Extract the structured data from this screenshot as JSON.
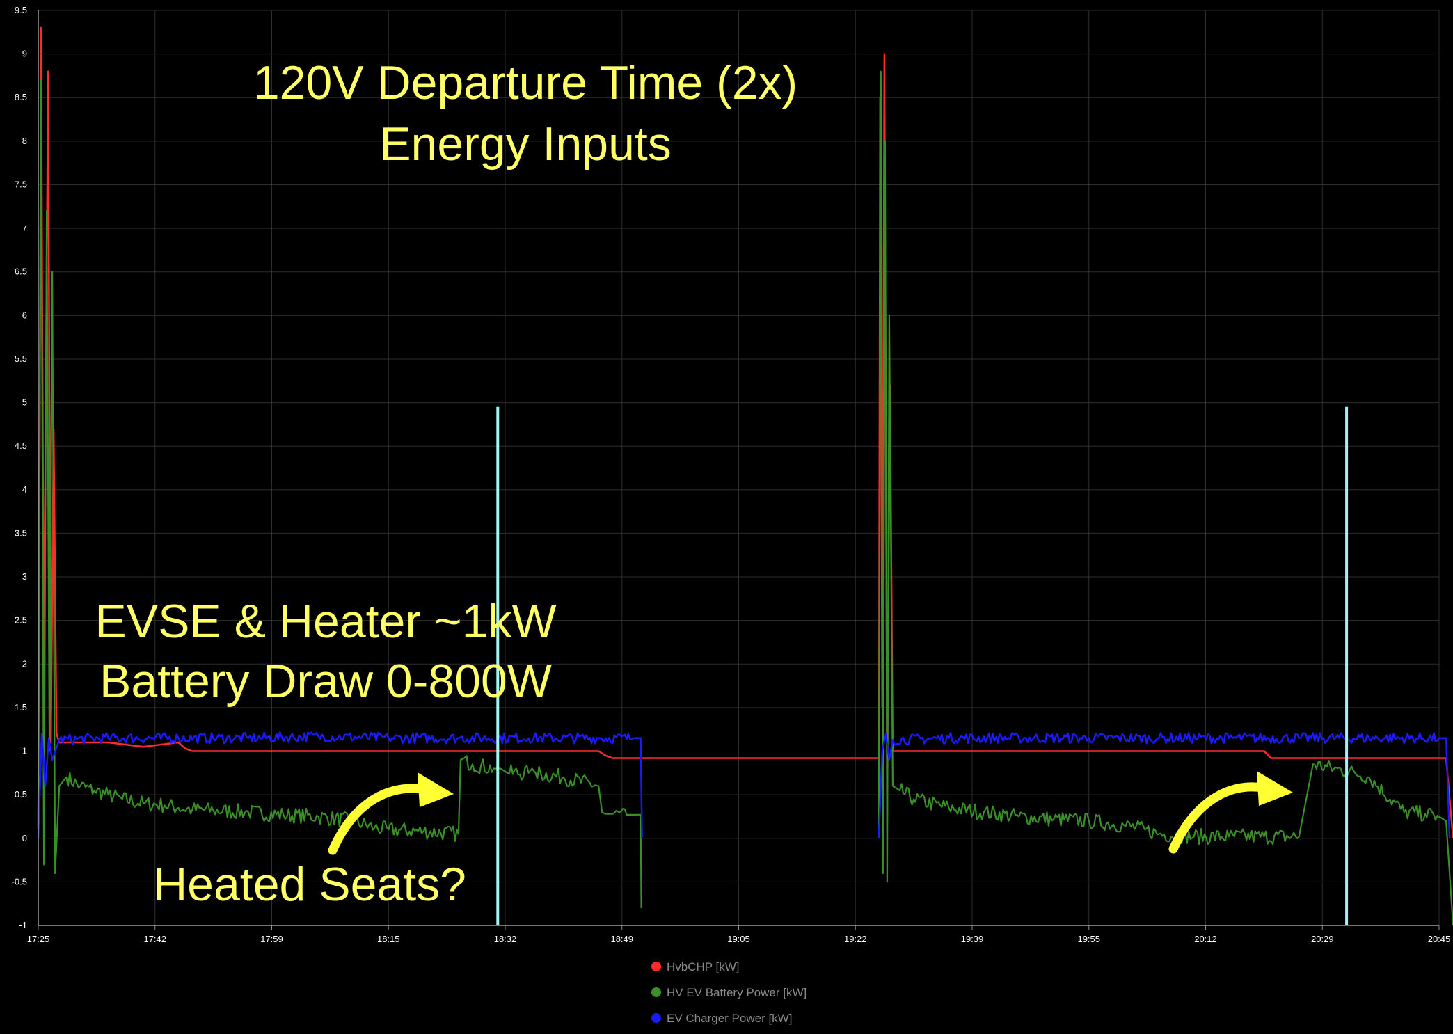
{
  "chart_data": {
    "type": "line",
    "title": "",
    "xlabel": "",
    "ylabel": "",
    "ylim": [
      -1,
      9.5
    ],
    "yticks": [
      "-1",
      "-0.5",
      "0",
      "0.5",
      "1",
      "1.5",
      "2",
      "2.5",
      "3",
      "3.5",
      "4",
      "4.5",
      "5",
      "5.5",
      "6",
      "6.5",
      "7",
      "7.5",
      "8",
      "8.5",
      "9",
      "9.5"
    ],
    "xticks": [
      "17:25",
      "17:42",
      "17:59",
      "18:15",
      "18:32",
      "18:49",
      "19:05",
      "19:22",
      "19:39",
      "19:55",
      "20:12",
      "20:29",
      "20:45"
    ],
    "x_range_minutes": [
      0,
      200
    ],
    "grid": true,
    "legend_position": "bottom-center",
    "series": [
      {
        "name": "HvbCHP [kW]",
        "color": "#ff2a2a",
        "segments": [
          {
            "x": [
              0,
              0.4,
              0.8,
              1,
              1.4,
              1.8,
              2.2,
              2.6,
              3,
              3.5,
              4,
              10,
              15,
              20,
              21,
              22,
              25,
              30,
              40,
              50,
              60,
              70,
              80,
              81,
              82,
              90,
              100,
              120
            ],
            "y": [
              0.1,
              9.3,
              1.5,
              4.2,
              8.8,
              1.1,
              4.7,
              1.2,
              1.1,
              1.1,
              1.1,
              1.1,
              1.05,
              1.1,
              1.03,
              1.0,
              1.0,
              1.0,
              1.0,
              1.0,
              1.0,
              1.0,
              1.0,
              0.95,
              0.92,
              0.92,
              0.92,
              0.92
            ]
          },
          {
            "x": [
              120,
              120.2,
              120.5,
              120.8,
              121.2,
              121.6,
              122,
              123,
              125,
              130,
              140,
              150,
              160,
              170,
              175,
              176,
              180,
              190,
              200,
              201,
              202
            ],
            "y": [
              0.05,
              8.5,
              1.5,
              9.0,
              0.7,
              5.2,
              1.0,
              1.0,
              1.0,
              1.0,
              1.0,
              1.0,
              1.0,
              1.0,
              1.0,
              0.92,
              0.92,
              0.92,
              0.92,
              0.92,
              0.0
            ]
          }
        ]
      },
      {
        "name": "HV EV Battery Power [kW]",
        "color": "#3a8f28",
        "segments": [
          {
            "x": [
              0,
              0.4,
              0.8,
              1.2,
              1.6,
              2,
              2.4,
              3,
              4,
              6,
              8,
              10,
              12,
              15,
              18,
              20,
              22,
              25,
              30,
              35,
              40,
              45,
              48,
              50,
              55,
              60,
              60.3,
              62,
              65,
              66,
              67,
              70,
              70.5,
              71,
              75,
              80,
              80.5,
              81,
              82,
              84,
              85,
              86,
              86.1
            ],
            "y": [
              0.2,
              8.7,
              -0.3,
              7.2,
              1.0,
              6.5,
              -0.4,
              0.6,
              0.7,
              0.6,
              0.55,
              0.5,
              0.45,
              0.4,
              0.38,
              0.35,
              0.33,
              0.32,
              0.3,
              0.27,
              0.25,
              0.2,
              0.12,
              0.1,
              0.08,
              0.05,
              0.9,
              0.85,
              0.8,
              0.8,
              0.75,
              0.75,
              0.8,
              0.75,
              0.7,
              0.6,
              0.3,
              0.28,
              0.28,
              0.27,
              0.27,
              0.27,
              -0.8
            ]
          },
          {
            "x": [
              120,
              120.3,
              120.6,
              120.9,
              121.2,
              121.5,
              122,
              123,
              125,
              130,
              135,
              140,
              145,
              150,
              155,
              158,
              160,
              165,
              170,
              175,
              180,
              182,
              185,
              188,
              190,
              195,
              198,
              200,
              201,
              202
            ],
            "y": [
              0.1,
              8.8,
              -0.4,
              8.0,
              -0.5,
              6.0,
              0.6,
              0.55,
              0.45,
              0.35,
              0.3,
              0.25,
              0.22,
              0.2,
              0.15,
              0.1,
              0.05,
              0.02,
              0.02,
              0.02,
              0.02,
              0.85,
              0.8,
              0.75,
              0.7,
              0.3,
              0.28,
              0.25,
              0.2,
              -1.0
            ]
          }
        ]
      },
      {
        "name": "EV Charger Power [kW]",
        "color": "#1a1aff",
        "segments": [
          {
            "x": [
              0,
              0.5,
              1,
              1.5,
              2,
              3,
              10,
              20,
              30,
              40,
              50,
              60,
              70,
              80,
              85,
              86,
              86.2
            ],
            "y": [
              0.0,
              1.2,
              0.6,
              1.15,
              0.9,
              1.13,
              1.15,
              1.15,
              1.15,
              1.17,
              1.15,
              1.15,
              1.15,
              1.15,
              1.15,
              1.15,
              0.0
            ]
          },
          {
            "x": [
              120,
              120.5,
              121,
              121.5,
              122,
              130,
              140,
              150,
              160,
              170,
              180,
              190,
              200,
              201,
              201.5
            ],
            "y": [
              0.0,
              1.0,
              1.2,
              0.9,
              1.13,
              1.15,
              1.15,
              1.15,
              1.15,
              1.15,
              1.15,
              1.15,
              1.15,
              1.15,
              0.0
            ]
          }
        ]
      },
      {
        "name": "",
        "color": "#9ff5f5",
        "segments": [
          {
            "x": [
              65.6,
              65.6
            ],
            "y": [
              -1,
              4.95
            ]
          },
          {
            "x": [
              186.8,
              186.8
            ],
            "y": [
              -1,
              4.95
            ]
          }
        ]
      }
    ]
  },
  "annotations": {
    "title_line1": "120V Departure Time (2x)",
    "title_line2": "Energy Inputs",
    "evse_line1": "EVSE & Heater ~1kW",
    "evse_line2": "Battery Draw 0-800W",
    "heated_seats": "Heated Seats?",
    "color": "#ffff66"
  },
  "legend": [
    {
      "label": "HvbCHP [kW]",
      "color": "#ff2a2a"
    },
    {
      "label": "HV EV Battery Power [kW]",
      "color": "#3a8f28"
    },
    {
      "label": "EV Charger Power [kW]",
      "color": "#1a1aff"
    }
  ]
}
